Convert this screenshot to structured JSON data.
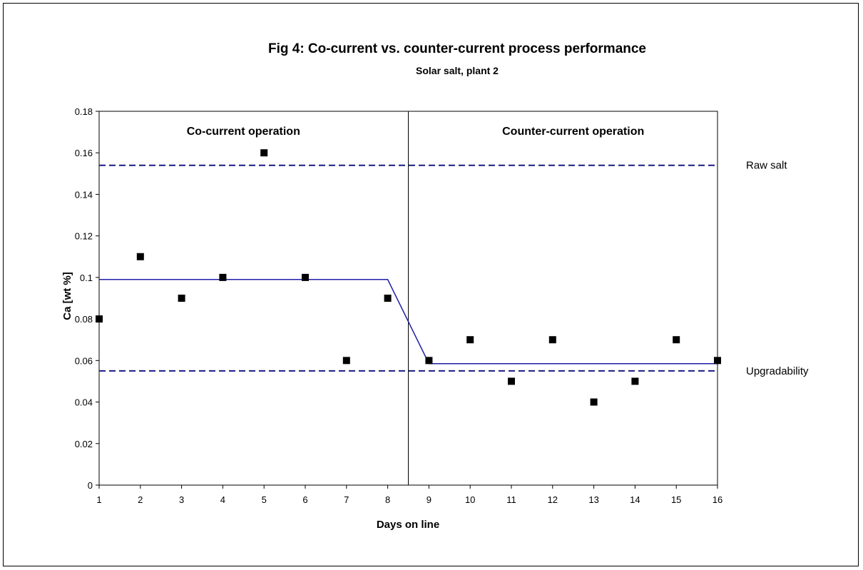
{
  "chart_data": {
    "type": "scatter",
    "title": "Fig 4:   Co-current vs. counter-current process performance",
    "subtitle": "Solar salt, plant 2",
    "xlabel": "Days on line",
    "ylabel": "Ca [wt %]",
    "x_ticks": [
      1,
      2,
      3,
      4,
      5,
      6,
      7,
      8,
      9,
      10,
      11,
      12,
      13,
      14,
      15,
      16
    ],
    "y_ticks": [
      "0",
      "0.02",
      "0.04",
      "0.06",
      "0.08",
      "0.1",
      "0.12",
      "0.14",
      "0.16",
      "0.18"
    ],
    "xlim": [
      1,
      16
    ],
    "ylim": [
      0,
      0.18
    ],
    "grid": false,
    "series": [
      {
        "marker": "square",
        "color": "#000000",
        "x": [
          1,
          2,
          3,
          4,
          5,
          6,
          7,
          8,
          9,
          10,
          11,
          12,
          13,
          14,
          15,
          16
        ],
        "y": [
          0.08,
          0.11,
          0.09,
          0.1,
          0.16,
          0.1,
          0.06,
          0.09,
          0.06,
          0.07,
          0.05,
          0.07,
          0.04,
          0.05,
          0.07,
          0.06
        ]
      },
      {
        "type": "line",
        "color": "#1f1fa8",
        "x": [
          1,
          8,
          9,
          16
        ],
        "y": [
          0.099,
          0.099,
          0.0585,
          0.0585
        ]
      }
    ],
    "reference_lines": [
      {
        "label": "Raw salt",
        "y": 0.154,
        "style": "dashed",
        "color": "#1a1a80"
      },
      {
        "label": "Upgradability",
        "y": 0.055,
        "style": "dashed",
        "color": "#1a1a80"
      }
    ],
    "divider_x": 8.5,
    "regions": [
      {
        "label": "Co-current operation",
        "x_center": 4.5
      },
      {
        "label": "Counter-current operation",
        "x_center": 12.5
      }
    ]
  }
}
